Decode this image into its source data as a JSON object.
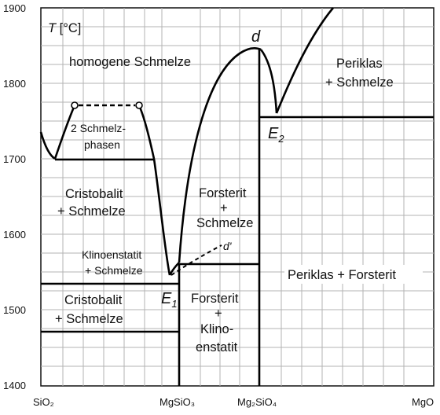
{
  "diagram": {
    "axis": {
      "y_title_var": "T",
      "y_title_unit": " [°C]",
      "y_ticks": [
        "1900",
        "1800",
        "1700",
        "1600",
        "1500",
        "1400"
      ],
      "x_ticks": [
        "SiO₂",
        "MgSiO₃",
        "Mg₂SiO₄",
        "MgO"
      ]
    },
    "regions": {
      "melt": "homogene Schmelze",
      "two_phase_1": "2 Schmelz-",
      "two_phase_2": "phasen",
      "cristobalite_melt_1": "Cristobalit",
      "cristobalite_melt_2": "+ Schmelze",
      "forsterite_melt_1": "Forsterit",
      "forsterite_melt_2": "+",
      "forsterite_melt_3": "Schmelze",
      "periclase_melt_1": "Periklas",
      "periclase_melt_2": "+ Schmelze",
      "clinoenstatite_melt_1": "Klinoenstatit",
      "clinoenstatite_melt_2": "+ Schmelze",
      "cristobalite_low_1": "Cristobalit",
      "cristobalite_low_2": "+ Schmelze",
      "forsterite_clino_1": "Forsterit",
      "forsterite_clino_2": "+",
      "forsterite_clino_3": "Klino-",
      "forsterite_clino_4": "enstatit",
      "periclase_forsterite": "Periklas + Forsterit"
    },
    "points": {
      "d": "d",
      "d_prime": "d'",
      "e1_letter": "E",
      "e1_sub": "1",
      "e2_letter": "E",
      "e2_sub": "2"
    }
  }
}
